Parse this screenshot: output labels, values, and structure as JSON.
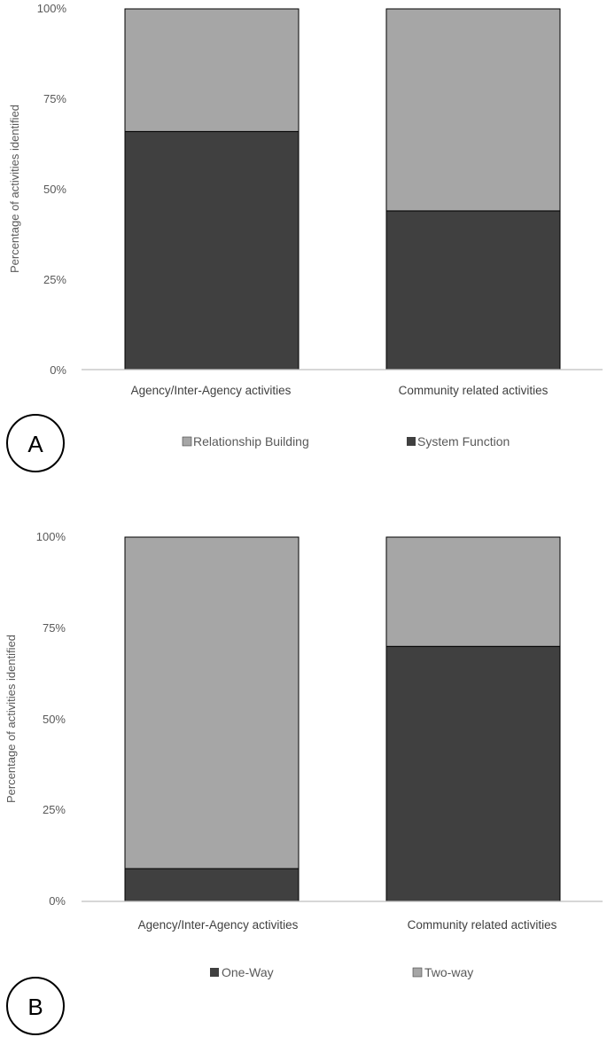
{
  "colors": {
    "dark": "#404040",
    "light": "#a6a6a6",
    "axis": "#bfbfbf",
    "outline": "#000000"
  },
  "chart_data": [
    {
      "type": "bar",
      "stacked": true,
      "panel_label": "A",
      "categories": [
        "Agency/Inter-Agency activities",
        "Community related activities"
      ],
      "series": [
        {
          "name": "System Function",
          "values": [
            66,
            44
          ],
          "color": "#404040"
        },
        {
          "name": "Relationship Building",
          "values": [
            34,
            56
          ],
          "color": "#a6a6a6"
        }
      ],
      "legend": [
        "Relationship Building",
        "System Function"
      ],
      "legend_position": "bottom",
      "ylabel": "Percentage of activities identified",
      "xlabel": "",
      "yticks": [
        "0%",
        "25%",
        "50%",
        "75%",
        "100%"
      ],
      "ylim": [
        0,
        100
      ]
    },
    {
      "type": "bar",
      "stacked": true,
      "panel_label": "B",
      "categories": [
        "Agency/Inter-Agency activities",
        "Community related activities"
      ],
      "series": [
        {
          "name": "One-Way",
          "values": [
            9,
            70
          ],
          "color": "#404040"
        },
        {
          "name": "Two-way",
          "values": [
            91,
            30
          ],
          "color": "#a6a6a6"
        }
      ],
      "legend": [
        "One-Way",
        "Two-way"
      ],
      "legend_position": "bottom",
      "ylabel": "Percentage of activities identified",
      "xlabel": "",
      "yticks": [
        "0%",
        "25%",
        "50%",
        "75%",
        "100%"
      ],
      "ylim": [
        0,
        100
      ]
    }
  ]
}
